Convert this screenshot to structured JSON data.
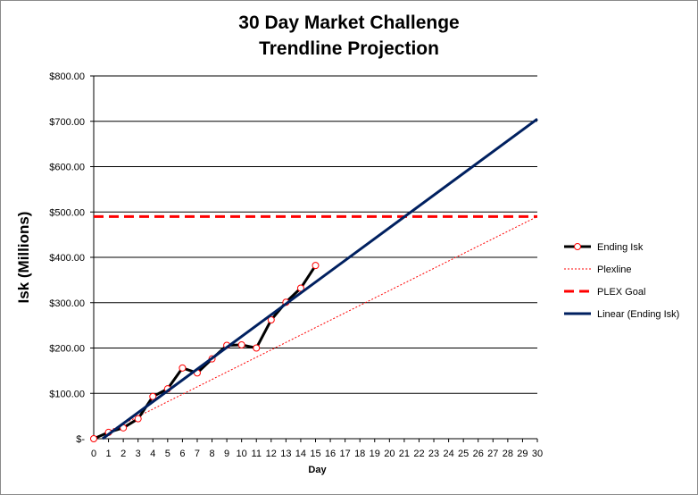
{
  "chart_data": {
    "type": "line",
    "title": [
      "30 Day Market Challenge",
      "Trendline Projection"
    ],
    "xlabel": "Day",
    "ylabel": "Isk (Millions)",
    "xlim": [
      0,
      30
    ],
    "ylim": [
      0,
      800
    ],
    "x_ticks": [
      0,
      1,
      2,
      3,
      4,
      5,
      6,
      7,
      8,
      9,
      10,
      11,
      12,
      13,
      14,
      15,
      16,
      17,
      18,
      19,
      20,
      21,
      22,
      23,
      24,
      25,
      26,
      27,
      28,
      29,
      30
    ],
    "y_ticks": [
      0,
      100,
      200,
      300,
      400,
      500,
      600,
      700,
      800
    ],
    "y_tick_labels": [
      "$-",
      "$100.00",
      "$200.00",
      "$300.00",
      "$400.00",
      "$500.00",
      "$600.00",
      "$700.00",
      "$800.00"
    ],
    "grid": "horizontal",
    "legend_position": "right",
    "series": [
      {
        "name": "Ending Isk",
        "style": "solid-with-markers",
        "color": "#000000",
        "marker_color": "#ff0000",
        "x": [
          0,
          1,
          2,
          3,
          4,
          5,
          6,
          7,
          8,
          9,
          10,
          11,
          12,
          13,
          14,
          15
        ],
        "y": [
          0,
          14,
          24,
          44,
          93,
          110,
          156,
          145,
          176,
          206,
          207,
          200,
          262,
          301,
          332,
          382
        ]
      },
      {
        "name": "Plexline",
        "style": "dotted",
        "color": "#ff0000",
        "x": [
          0,
          30
        ],
        "y": [
          0,
          490
        ]
      },
      {
        "name": "PLEX Goal",
        "style": "dashed",
        "color": "#ff0000",
        "x": [
          0,
          30
        ],
        "y": [
          490,
          490
        ]
      },
      {
        "name": "Linear (Ending Isk)",
        "style": "solid-thick",
        "color": "#002060",
        "x": [
          0.6,
          30
        ],
        "y": [
          0,
          705
        ]
      }
    ]
  }
}
